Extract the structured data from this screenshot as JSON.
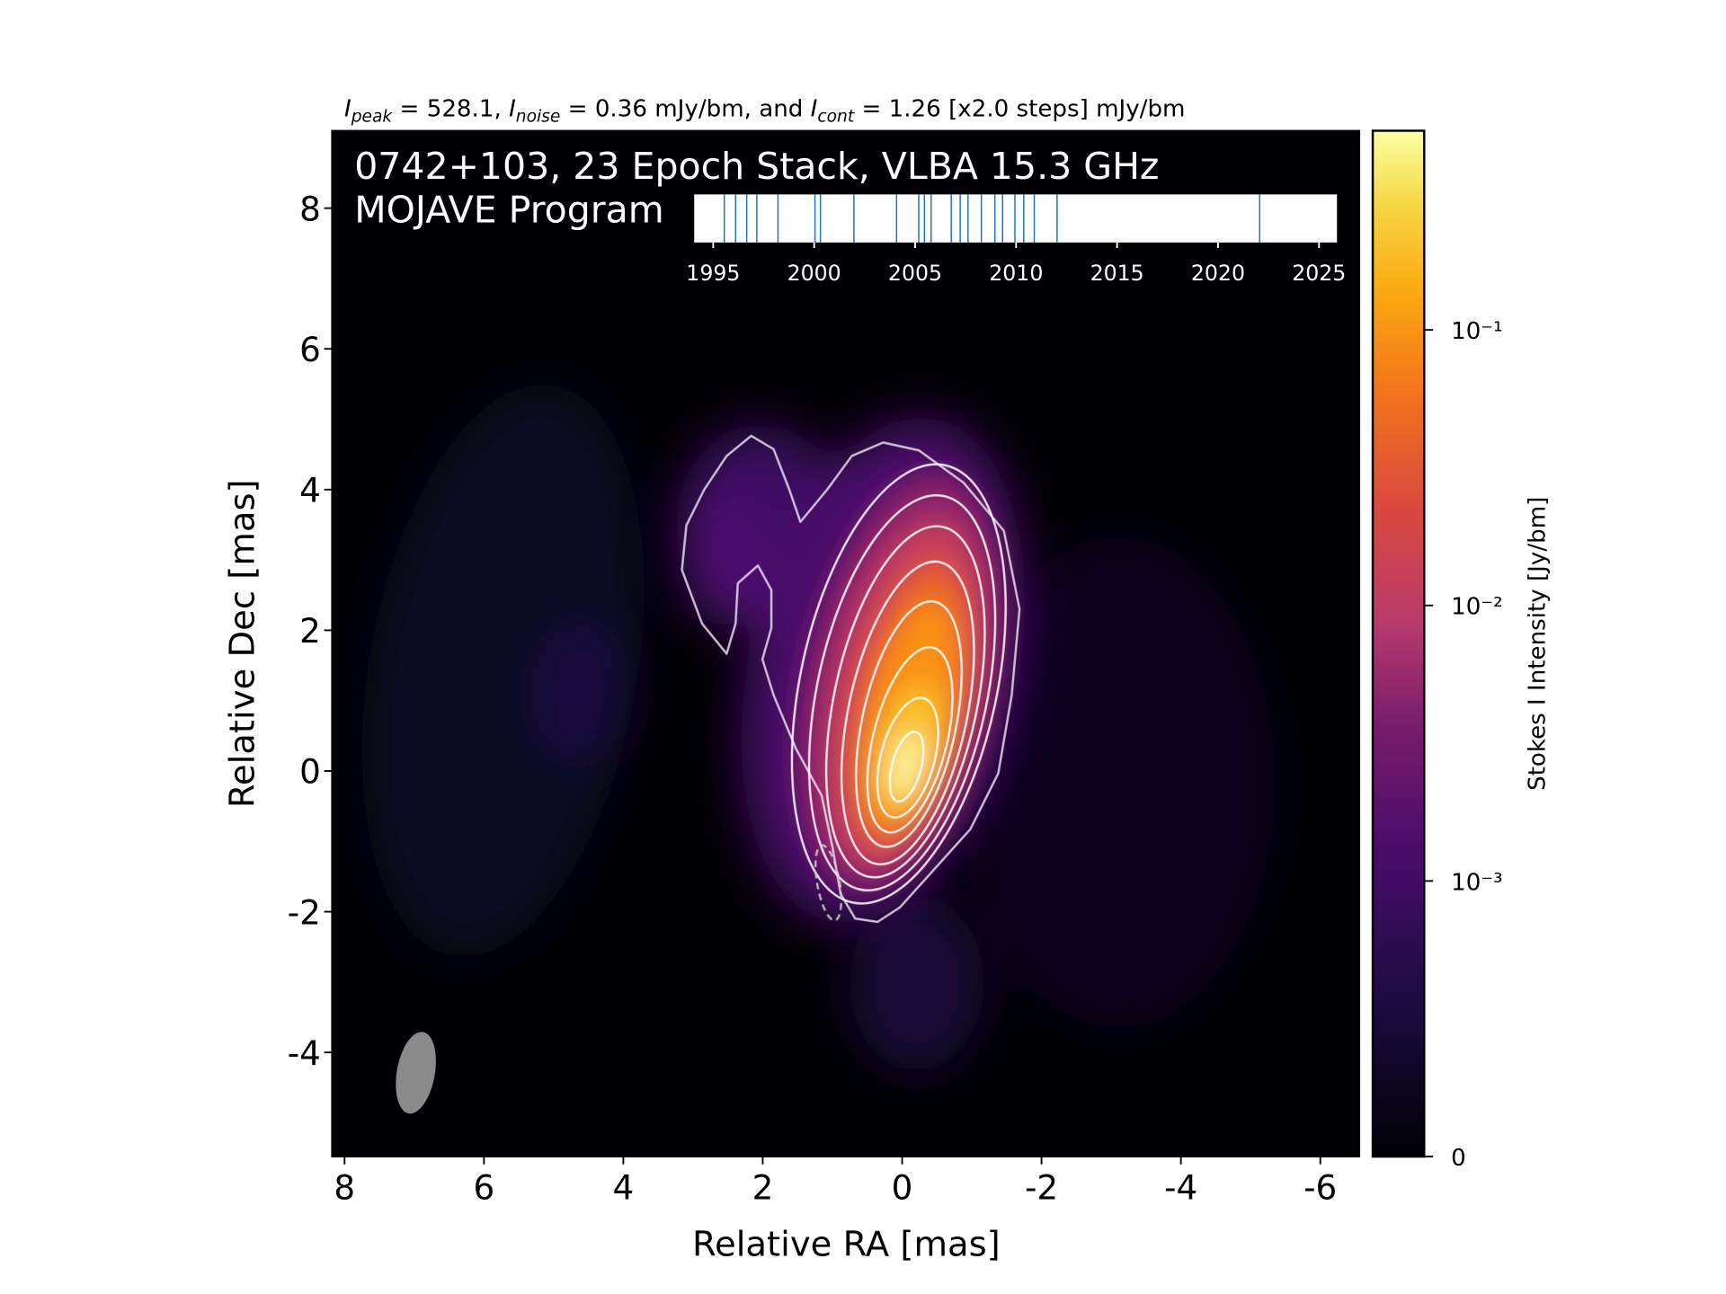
{
  "chart_data": {
    "type": "image",
    "title": [
      "I",
      "peak",
      " = 528.1, ",
      "I",
      "noise",
      " = 0.36 mJy/bm, and ",
      "I",
      "cont",
      " = 1.26 [x2.0 steps] mJy/bm"
    ],
    "annotations": [
      "0742+103, 23 Epoch Stack, VLBA 15.3 GHz",
      "MOJAVE Program"
    ],
    "xlabel": "Relative RA [mas]",
    "ylabel": "Relative Dec [mas]",
    "xlim": [
      8.18,
      -6.56
    ],
    "ylim": [
      -5.48,
      9.1
    ],
    "xticks": [
      8,
      6,
      4,
      2,
      0,
      -2,
      -4,
      -6
    ],
    "yticks": [
      -4,
      -2,
      0,
      2,
      4,
      6,
      8
    ],
    "colorbar": {
      "label": "Stokes I Intensity [Jy/bm]",
      "scale": "symlog",
      "linthresh": 0.001,
      "clim": [
        0,
        0.5281
      ],
      "ticks": [
        0,
        {
          "value": 0.001,
          "label": "10⁻³"
        },
        {
          "value": 0.01,
          "label": "10⁻²"
        },
        {
          "value": 0.1,
          "label": "10⁻¹"
        }
      ]
    },
    "inset": {
      "type": "rug",
      "color": "#1f77b4",
      "xlim": [
        1994.06,
        2025.89
      ],
      "xticks": [
        1995,
        2000,
        2005,
        2010,
        2015,
        2020,
        2025
      ],
      "values": [
        1995.55,
        1996.11,
        1996.66,
        1997.16,
        1998.21,
        2000.04,
        2000.31,
        2001.97,
        2004.08,
        2005.18,
        2005.46,
        2005.79,
        2006.79,
        2007.23,
        2007.62,
        2008.28,
        2008.95,
        2009.33,
        2009.94,
        2010.38,
        2010.9,
        2012.03,
        2022.06
      ]
    }
  }
}
